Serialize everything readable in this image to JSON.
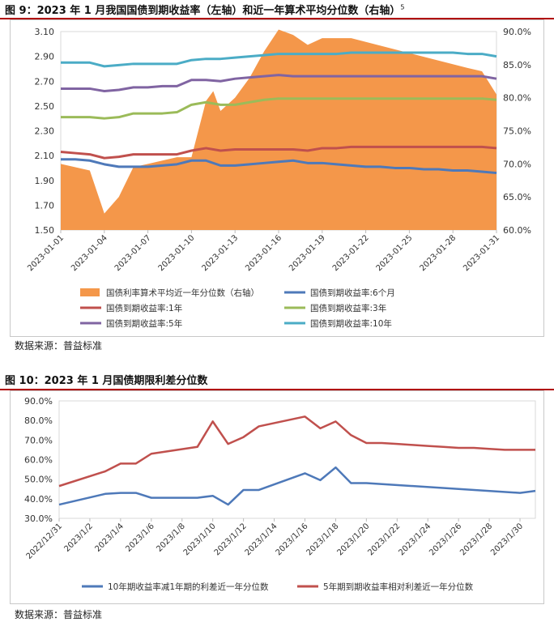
{
  "figure1": {
    "title": "图 9：2023 年 1 月我国国债到期收益率（左轴）和近一年算术平均分位数（右轴）",
    "note": "5",
    "source": "数据来源：普益标准"
  },
  "figure2": {
    "title": "图 10：2023 年 1 月国债期限利差分位数",
    "source": "数据来源：普益标准"
  },
  "chart_data": [
    {
      "type": "line",
      "title": "2023 年 1 月我国国债到期收益率（左轴）和近一年算术平均分位数（右轴）",
      "x": [
        1,
        2,
        3,
        4,
        5,
        6,
        7,
        8,
        9,
        10,
        11,
        12,
        13,
        14,
        15,
        16,
        17,
        18,
        19,
        20,
        21,
        22,
        23,
        24,
        25,
        26,
        27,
        28,
        29,
        30,
        31
      ],
      "x_tick_labels": [
        {
          "day": 1,
          "label": "2023-01-01"
        },
        {
          "day": 4,
          "label": "2023-01-04"
        },
        {
          "day": 7,
          "label": "2023-01-07"
        },
        {
          "day": 10,
          "label": "2023-01-10"
        },
        {
          "day": 13,
          "label": "2023-01-13"
        },
        {
          "day": 16,
          "label": "2023-01-16"
        },
        {
          "day": 19,
          "label": "2023-01-19"
        },
        {
          "day": 22,
          "label": "2023-01-22"
        },
        {
          "day": 25,
          "label": "2023-01-25"
        },
        {
          "day": 28,
          "label": "2023-01-28"
        },
        {
          "day": 31,
          "label": "2023-01-31"
        }
      ],
      "ylim_left": [
        1.5,
        3.1
      ],
      "yticks_left": [
        "3.10",
        "2.90",
        "2.70",
        "2.50",
        "2.30",
        "2.10",
        "1.90",
        "1.70",
        "1.50"
      ],
      "ylim_right": [
        60,
        90
      ],
      "yticks_right": [
        "90.0%",
        "85.0%",
        "80.0%",
        "75.0%",
        "70.0%",
        "65.0%",
        "60.0%"
      ],
      "area": {
        "name": "国债利率算术平均近一年分位数（右轴）",
        "color": "#f4974a",
        "axis": "right",
        "x": [
          1,
          3,
          4,
          5,
          6,
          7,
          8,
          9,
          10,
          11,
          11.5,
          12,
          13,
          14,
          15,
          16,
          17,
          18,
          19,
          20,
          21,
          29,
          30,
          31
        ],
        "values": [
          70,
          69,
          62.5,
          65,
          69.5,
          70,
          70.5,
          71,
          71,
          79.5,
          81,
          78,
          80,
          83,
          87,
          90.3,
          89.5,
          88,
          89,
          89,
          89,
          84.5,
          84,
          80.5
        ]
      },
      "series": [
        {
          "name": "国债到期收益率:6个月",
          "color": "#4e79b9",
          "axis": "left",
          "values": [
            2.07,
            2.07,
            2.06,
            2.03,
            2.01,
            2.01,
            2.01,
            2.02,
            2.03,
            2.06,
            2.06,
            2.02,
            2.02,
            2.03,
            2.04,
            2.05,
            2.06,
            2.04,
            2.04,
            2.03,
            2.02,
            2.01,
            2.01,
            2.0,
            2.0,
            1.99,
            1.99,
            1.98,
            1.98,
            1.97,
            1.96
          ]
        },
        {
          "name": "国债到期收益率:1年",
          "color": "#c0504d",
          "axis": "left",
          "values": [
            2.13,
            2.12,
            2.11,
            2.08,
            2.09,
            2.11,
            2.11,
            2.11,
            2.11,
            2.14,
            2.16,
            2.14,
            2.15,
            2.15,
            2.15,
            2.15,
            2.15,
            2.14,
            2.16,
            2.16,
            2.17,
            2.17,
            2.17,
            2.17,
            2.17,
            2.17,
            2.17,
            2.17,
            2.17,
            2.17,
            2.16
          ]
        },
        {
          "name": "国债到期收益率:3年",
          "color": "#9bbb59",
          "axis": "left",
          "values": [
            2.41,
            2.41,
            2.41,
            2.4,
            2.41,
            2.44,
            2.44,
            2.44,
            2.45,
            2.51,
            2.53,
            2.51,
            2.51,
            2.53,
            2.55,
            2.56,
            2.56,
            2.56,
            2.56,
            2.56,
            2.56,
            2.56,
            2.56,
            2.56,
            2.56,
            2.56,
            2.56,
            2.56,
            2.56,
            2.56,
            2.55
          ]
        },
        {
          "name": "国债到期收益率:5年",
          "color": "#8064a2",
          "axis": "left",
          "values": [
            2.64,
            2.64,
            2.64,
            2.62,
            2.63,
            2.65,
            2.65,
            2.66,
            2.66,
            2.71,
            2.71,
            2.7,
            2.72,
            2.73,
            2.74,
            2.75,
            2.74,
            2.74,
            2.74,
            2.74,
            2.74,
            2.74,
            2.74,
            2.74,
            2.74,
            2.74,
            2.74,
            2.74,
            2.74,
            2.74,
            2.72
          ]
        },
        {
          "name": "国债到期收益率:10年",
          "color": "#4bacc6",
          "axis": "left",
          "values": [
            2.85,
            2.85,
            2.85,
            2.82,
            2.83,
            2.84,
            2.84,
            2.84,
            2.84,
            2.87,
            2.88,
            2.88,
            2.89,
            2.9,
            2.91,
            2.92,
            2.92,
            2.92,
            2.92,
            2.92,
            2.93,
            2.93,
            2.93,
            2.93,
            2.93,
            2.93,
            2.93,
            2.93,
            2.92,
            2.92,
            2.9
          ]
        }
      ],
      "legend": [
        {
          "label": "国债利率算术平均近一年分位数（右轴）",
          "kind": "area",
          "color": "#f4974a"
        },
        {
          "label": "国债到期收益率:6个月",
          "kind": "line",
          "color": "#4e79b9"
        },
        {
          "label": "国债到期收益率:1年",
          "kind": "line",
          "color": "#c0504d"
        },
        {
          "label": "国债到期收益率:3年",
          "kind": "line",
          "color": "#9bbb59"
        },
        {
          "label": "国债到期收益率:5年",
          "kind": "line",
          "color": "#8064a2"
        },
        {
          "label": "国债到期收益率:10年",
          "kind": "line",
          "color": "#4bacc6"
        }
      ],
      "legend_position": "bottom"
    },
    {
      "type": "line",
      "title": "2023 年 1 月国债期限利差分位数",
      "x": [
        0,
        1,
        2,
        3,
        4,
        5,
        6,
        7,
        8,
        9,
        10,
        11,
        12,
        13,
        14,
        15,
        16,
        17,
        18,
        19,
        20,
        21,
        22,
        23,
        24,
        25,
        26,
        27,
        28,
        29,
        30,
        31
      ],
      "x_tick_labels": [
        {
          "day": 0,
          "label": "2022/12/31"
        },
        {
          "day": 2,
          "label": "2023/1/2"
        },
        {
          "day": 4,
          "label": "2023/1/4"
        },
        {
          "day": 6,
          "label": "2023/1/6"
        },
        {
          "day": 8,
          "label": "2023/1/8"
        },
        {
          "day": 10,
          "label": "2023/1/10"
        },
        {
          "day": 12,
          "label": "2023/1/12"
        },
        {
          "day": 14,
          "label": "2023/1/14"
        },
        {
          "day": 16,
          "label": "2023/1/16"
        },
        {
          "day": 18,
          "label": "2023/1/18"
        },
        {
          "day": 20,
          "label": "2023/1/20"
        },
        {
          "day": 22,
          "label": "2023/1/22"
        },
        {
          "day": 24,
          "label": "2023/1/24"
        },
        {
          "day": 26,
          "label": "2023/1/26"
        },
        {
          "day": 28,
          "label": "2023/1/28"
        },
        {
          "day": 30,
          "label": "2023/1/30"
        }
      ],
      "ylim": [
        30,
        90
      ],
      "yticks": [
        "90.0%",
        "80.0%",
        "70.0%",
        "60.0%",
        "50.0%",
        "40.0%",
        "30.0%"
      ],
      "series": [
        {
          "name": "10年期收益率减1年期的利差近一年分位数",
          "color": "#4e79b9",
          "x": [
            0,
            3,
            4,
            5,
            6,
            7,
            8,
            9,
            10,
            11,
            12,
            13,
            16,
            17,
            18,
            19,
            20,
            30,
            31
          ],
          "values": [
            37,
            42.5,
            43,
            43,
            40.5,
            40.5,
            40.5,
            40.5,
            41.5,
            37,
            44.5,
            44.5,
            53,
            49.5,
            56,
            48,
            48,
            43,
            44
          ]
        },
        {
          "name": "5年期到期收益率相对利差近一年分位数",
          "color": "#c0504d",
          "x": [
            0,
            3,
            4,
            5,
            6,
            9,
            10,
            11,
            12,
            13,
            16,
            17,
            18,
            19,
            20,
            21,
            22,
            23,
            24,
            25,
            26,
            27,
            28,
            29,
            30,
            31
          ],
          "values": [
            46.5,
            54,
            58,
            58,
            63,
            66.5,
            79.5,
            68,
            71.5,
            77,
            82,
            76,
            79.5,
            72.5,
            68.5,
            68.5,
            68,
            67.5,
            67,
            66.5,
            66,
            66,
            65.5,
            65,
            65,
            65
          ]
        }
      ],
      "legend": [
        {
          "label": "10年期收益率减1年期的利差近一年分位数",
          "color": "#4e79b9"
        },
        {
          "label": "5年期到期收益率相对利差近一年分位数",
          "color": "#c0504d"
        }
      ],
      "legend_position": "bottom"
    }
  ]
}
